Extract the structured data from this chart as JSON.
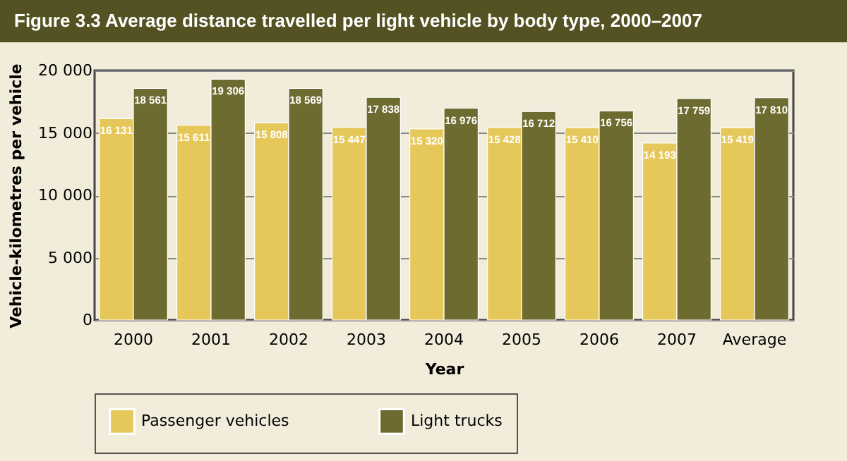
{
  "chart_data": {
    "type": "bar",
    "title": "Figure 3.3  Average distance travelled per light vehicle by body type, 2000–2007",
    "xlabel": "Year",
    "ylabel": "Vehicle-kilometres per vehicle",
    "categories": [
      "2000",
      "2001",
      "2002",
      "2003",
      "2004",
      "2005",
      "2006",
      "2007",
      "Average"
    ],
    "series": [
      {
        "name": "Passenger vehicles",
        "color": "#e6c85a",
        "values": [
          16131,
          15611,
          15808,
          15447,
          15320,
          15428,
          15410,
          14193,
          15419
        ],
        "value_labels": [
          "16 131",
          "15 611",
          "15 808",
          "15 447",
          "15 320",
          "15 428",
          "15 410",
          "14 193",
          "15 419"
        ]
      },
      {
        "name": "Light trucks",
        "color": "#6e6b30",
        "values": [
          18561,
          19306,
          18569,
          17838,
          16976,
          16712,
          16756,
          17759,
          17810
        ],
        "value_labels": [
          "18 561",
          "19 306",
          "18 569",
          "17 838",
          "16 976",
          "16 712",
          "16 756",
          "17 759",
          "17 810"
        ]
      }
    ],
    "ylim": [
      0,
      20000
    ],
    "yticks": [
      {
        "value": 0,
        "label": "0"
      },
      {
        "value": 5000,
        "label": "5 000"
      },
      {
        "value": 10000,
        "label": "10 000"
      },
      {
        "value": 15000,
        "label": "15 000"
      },
      {
        "value": 20000,
        "label": "20 000"
      }
    ],
    "grid": "y",
    "legend": "bottom"
  }
}
